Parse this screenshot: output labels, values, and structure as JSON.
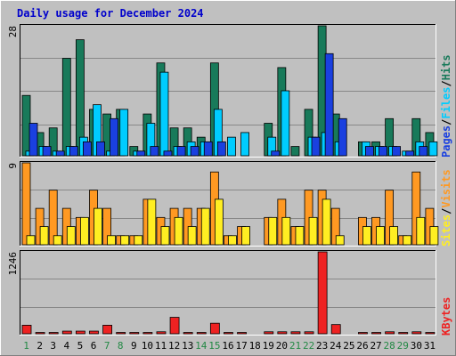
{
  "title": "Daily usage for December 2024",
  "colors": {
    "background": "#c0c0c0",
    "hits": "#187a5a",
    "files": "#00ccff",
    "pages": "#1a40e0",
    "visits": "#ff9922",
    "sites": "#ffee22",
    "kbytes": "#ee2222",
    "weekend_day": "#228844",
    "weekday": "#000000",
    "gridline": "#888888"
  },
  "legends": {
    "pages": "Pages",
    "files": "Files",
    "hits": "Hits",
    "sites": "Sites",
    "visits": "Visits",
    "kbytes": "KBytes",
    "separator": "/"
  },
  "chart_data": [
    {
      "type": "bar",
      "panel": "hits-files-pages",
      "axis_max_label": "28",
      "ylim": [
        0,
        28
      ],
      "grid": true,
      "categories": [
        "1",
        "2",
        "3",
        "4",
        "5",
        "6",
        "7",
        "8",
        "9",
        "10",
        "11",
        "12",
        "13",
        "14",
        "15",
        "16",
        "17",
        "18",
        "19",
        "20",
        "21",
        "22",
        "23",
        "24",
        "25",
        "26",
        "27",
        "28",
        "29",
        "30",
        "31"
      ],
      "series": [
        {
          "name": "Hits",
          "values": [
            13,
            5,
            6,
            21,
            25,
            10,
            9,
            10,
            2,
            9,
            20,
            6,
            6,
            4,
            20,
            0,
            0,
            0,
            7,
            19,
            2,
            10,
            28,
            9,
            0,
            3,
            3,
            8,
            0,
            8,
            5
          ]
        },
        {
          "name": "Files",
          "values": [
            1,
            2,
            1,
            2,
            4,
            11,
            1,
            10,
            1,
            7,
            18,
            2,
            3,
            3,
            10,
            4,
            5,
            0,
            4,
            14,
            0,
            4,
            5,
            3,
            0,
            3,
            2,
            2,
            1,
            3,
            3
          ]
        },
        {
          "name": "Pages",
          "values": [
            7,
            2,
            1,
            2,
            3,
            3,
            8,
            0,
            1,
            2,
            1,
            2,
            2,
            3,
            3,
            0,
            0,
            0,
            1,
            0,
            0,
            4,
            22,
            8,
            0,
            2,
            2,
            2,
            1,
            2,
            0
          ]
        }
      ]
    },
    {
      "type": "bar",
      "panel": "visits-sites",
      "axis_max_label": "9",
      "ylim": [
        0,
        9
      ],
      "grid": true,
      "categories": [
        "1",
        "2",
        "3",
        "4",
        "5",
        "6",
        "7",
        "8",
        "9",
        "10",
        "11",
        "12",
        "13",
        "14",
        "15",
        "16",
        "17",
        "18",
        "19",
        "20",
        "21",
        "22",
        "23",
        "24",
        "25",
        "26",
        "27",
        "28",
        "29",
        "30",
        "31"
      ],
      "series": [
        {
          "name": "Visits",
          "values": [
            9,
            4,
            6,
            4,
            3,
            6,
            4,
            1,
            1,
            5,
            3,
            4,
            4,
            4,
            8,
            1,
            2,
            0,
            3,
            5,
            2,
            6,
            6,
            4,
            0,
            3,
            3,
            6,
            1,
            8,
            4
          ]
        },
        {
          "name": "Sites",
          "values": [
            1,
            2,
            1,
            2,
            3,
            4,
            1,
            1,
            1,
            5,
            2,
            3,
            2,
            4,
            5,
            1,
            2,
            0,
            3,
            3,
            2,
            3,
            5,
            1,
            0,
            2,
            2,
            2,
            1,
            3,
            2
          ]
        }
      ]
    },
    {
      "type": "bar",
      "panel": "kbytes",
      "axis_max_label": "1246",
      "ylim": [
        0,
        1246
      ],
      "grid": true,
      "categories": [
        "1",
        "2",
        "3",
        "4",
        "5",
        "6",
        "7",
        "8",
        "9",
        "10",
        "11",
        "12",
        "13",
        "14",
        "15",
        "16",
        "17",
        "18",
        "19",
        "20",
        "21",
        "22",
        "23",
        "24",
        "25",
        "26",
        "27",
        "28",
        "29",
        "30",
        "31"
      ],
      "series": [
        {
          "name": "KBytes",
          "values": [
            130,
            20,
            20,
            40,
            40,
            40,
            130,
            20,
            20,
            20,
            30,
            250,
            20,
            20,
            160,
            20,
            20,
            0,
            30,
            30,
            30,
            30,
            1246,
            140,
            0,
            20,
            20,
            30,
            20,
            30,
            20
          ]
        }
      ]
    }
  ],
  "weekend_days": [
    1,
    7,
    8,
    14,
    15,
    21,
    22,
    28,
    29
  ]
}
